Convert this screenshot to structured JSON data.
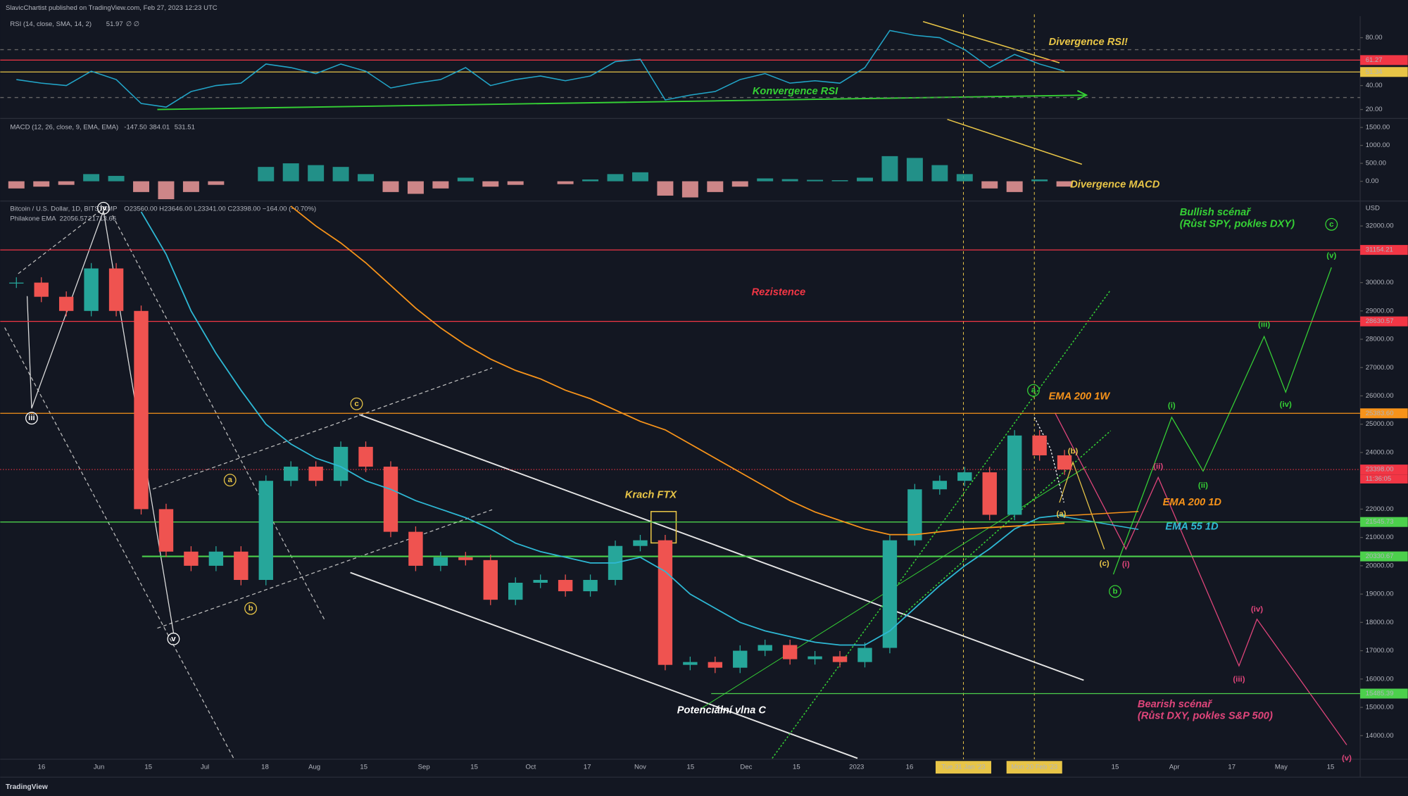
{
  "header": {
    "publisher": "SlavicChartist published on TradingView.com, Feb 27, 2023 12:23 UTC",
    "footer": "TradingView"
  },
  "rsi": {
    "legend": "RSI (14, close, SMA, 14, 2)",
    "readout": "51.97",
    "extra": "∅ ∅",
    "ylim": [
      14,
      98
    ],
    "yticks": [
      {
        "value": 80,
        "label": "80.00"
      },
      {
        "value": 40,
        "label": "40.00"
      },
      {
        "value": 20,
        "label": "20.00"
      }
    ],
    "levels": [
      61.27,
      51.34
    ],
    "level_colors": [
      "#f23645",
      "#e8c547"
    ],
    "color": "#22a6c9",
    "values": [
      45,
      42,
      40,
      52,
      45,
      25,
      22,
      35,
      40,
      42,
      58,
      55,
      50,
      58,
      52,
      38,
      42,
      45,
      55,
      40,
      45,
      48,
      44,
      48,
      60,
      62,
      28,
      32,
      35,
      45,
      50,
      42,
      44,
      42,
      55,
      86,
      82,
      80,
      70,
      55,
      66,
      58,
      52
    ],
    "annotations": [
      "Divergence RSI!",
      "Konvergence RSI"
    ]
  },
  "macd": {
    "legend": "MACD (12, 26, close, 9, EMA, EMA)",
    "readouts": [
      "-147.50",
      "384.01",
      "531.51"
    ],
    "ylim": [
      -500,
      1675
    ],
    "yticks": [
      {
        "value": 1500,
        "label": "1500.00"
      },
      {
        "value": 1000,
        "label": "1000.00"
      },
      {
        "value": 500,
        "label": "500.00"
      },
      {
        "value": 0,
        "label": "0.00"
      }
    ],
    "histogram": [
      -200,
      -150,
      -100,
      200,
      150,
      -300,
      -500,
      -300,
      -100,
      0,
      400,
      500,
      450,
      400,
      200,
      -300,
      -350,
      -200,
      100,
      -150,
      -100,
      0,
      -80,
      50,
      200,
      250,
      -400,
      -450,
      -300,
      -150,
      80,
      60,
      40,
      30,
      100,
      700,
      650,
      450,
      200,
      -200,
      -300,
      50,
      -147.5
    ],
    "annotations": [
      "Divergence MACD"
    ]
  },
  "price": {
    "legend": "Bitcoin / U.S. Dollar, 1D, BITSTAMP",
    "ohlc": "O23560.00 H23646.00 L23341.00 C23398.00 −164.00 (−0.70%)",
    "ema_legend": "Philakone EMA",
    "ema_readouts": [
      "22056.57",
      "21713.66"
    ],
    "unit": "USD",
    "ylim": [
      13200,
      32850
    ],
    "yticks": [
      {
        "value": 32000,
        "label": "32000.00"
      },
      {
        "value": 30000,
        "label": "30000.00"
      },
      {
        "value": 29000,
        "label": "29000.00"
      },
      {
        "value": 28000,
        "label": "28000.00"
      },
      {
        "value": 27000,
        "label": "27000.00"
      },
      {
        "value": 26000,
        "label": "26000.00"
      },
      {
        "value": 25000,
        "label": "25000.00"
      },
      {
        "value": 24000,
        "label": "24000.00"
      },
      {
        "value": 22000,
        "label": "22000.00"
      },
      {
        "value": 21000,
        "label": "21000.00"
      },
      {
        "value": 20000,
        "label": "20000.00"
      },
      {
        "value": 19000,
        "label": "19000.00"
      },
      {
        "value": 18000,
        "label": "18000.00"
      },
      {
        "value": 17000,
        "label": "17000.00"
      },
      {
        "value": 16000,
        "label": "16000.00"
      },
      {
        "value": 15000,
        "label": "15000.00"
      },
      {
        "value": 14000,
        "label": "14000.00"
      }
    ],
    "levels": [
      31154.21,
      28630.57,
      {
        "value": 25383.6,
        "label": "25383.60"
      },
      {
        "value": 23398,
        "label": "23398.00"
      },
      21545.73,
      20330.67,
      15485.39
    ],
    "level_colors": [
      "#f23645",
      "#f23645",
      "#f7931a",
      "#f23645",
      "#4cd04c",
      "#4cd04c",
      "#4cd04c"
    ],
    "countdown": "11:36:05",
    "closes": [
      30000,
      29500,
      29000,
      30500,
      29000,
      22000,
      20500,
      20000,
      20500,
      19500,
      23000,
      23500,
      23000,
      24200,
      23500,
      21200,
      20000,
      20300,
      20200,
      18800,
      19400,
      19500,
      19100,
      19500,
      20700,
      20900,
      16500,
      16600,
      16400,
      17000,
      17200,
      16700,
      16800,
      16600,
      17100,
      20900,
      22700,
      23000,
      23300,
      21800,
      24600,
      23900,
      23398
    ],
    "ema55": [
      null,
      null,
      null,
      null,
      null,
      32500,
      31000,
      29000,
      27500,
      26200,
      25000,
      24300,
      23800,
      23500,
      23000,
      22700,
      22300,
      22000,
      21700,
      21300,
      20800,
      20500,
      20300,
      20100,
      20100,
      20300,
      19800,
      19000,
      18500,
      18000,
      17700,
      17500,
      17300,
      17200,
      17200,
      17700,
      18500,
      19300,
      20000,
      20600,
      21300,
      21700,
      21800
    ],
    "ema200": [
      null,
      null,
      null,
      null,
      null,
      null,
      null,
      null,
      null,
      null,
      null,
      32700,
      32000,
      31400,
      30700,
      29900,
      29100,
      28400,
      27800,
      27300,
      26900,
      26600,
      26200,
      25900,
      25500,
      25100,
      24800,
      24300,
      23800,
      23300,
      22800,
      22300,
      21900,
      21600,
      21300,
      21100,
      21100,
      21200,
      21300,
      21350,
      21400,
      21450,
      21500
    ],
    "colors": {
      "up": "#26a69a",
      "down": "#ef5350",
      "ema55": "#2eb8d4",
      "ema200": "#f7931a"
    },
    "annotations": [
      "Bullish scénař",
      "(Růst SPY, pokles DXY)",
      "Rezistence",
      "EMA 200 1W",
      "Krach FTX",
      "EMA 200 1D",
      "EMA 55 1D",
      "Potenciální vlna C",
      "Bearish scénař",
      "(Růst DXY, pokles S&P 500)"
    ],
    "waves": [
      "(i)",
      "(ii)",
      "(iii)",
      "(iv)",
      "(v)",
      "c",
      "b",
      "a",
      "(i)",
      "(ii)",
      "(iii)",
      "(iv)",
      "(v)",
      "(b)",
      "(c)",
      "(a)",
      "a",
      "b",
      "c",
      "iii",
      "iv",
      "v"
    ]
  },
  "xaxis": {
    "labels": [
      "16",
      "Jun",
      "15",
      "Jul",
      "18",
      "Aug",
      "15",
      "Sep",
      "15",
      "Oct",
      "17",
      "Nov",
      "15",
      "Dec",
      "15",
      "2023",
      "16",
      "15",
      "Apr",
      "17",
      "May",
      "15"
    ],
    "highlights": [
      "Tue 31 Jan '23",
      "Mon 20 Feb '23"
    ]
  }
}
